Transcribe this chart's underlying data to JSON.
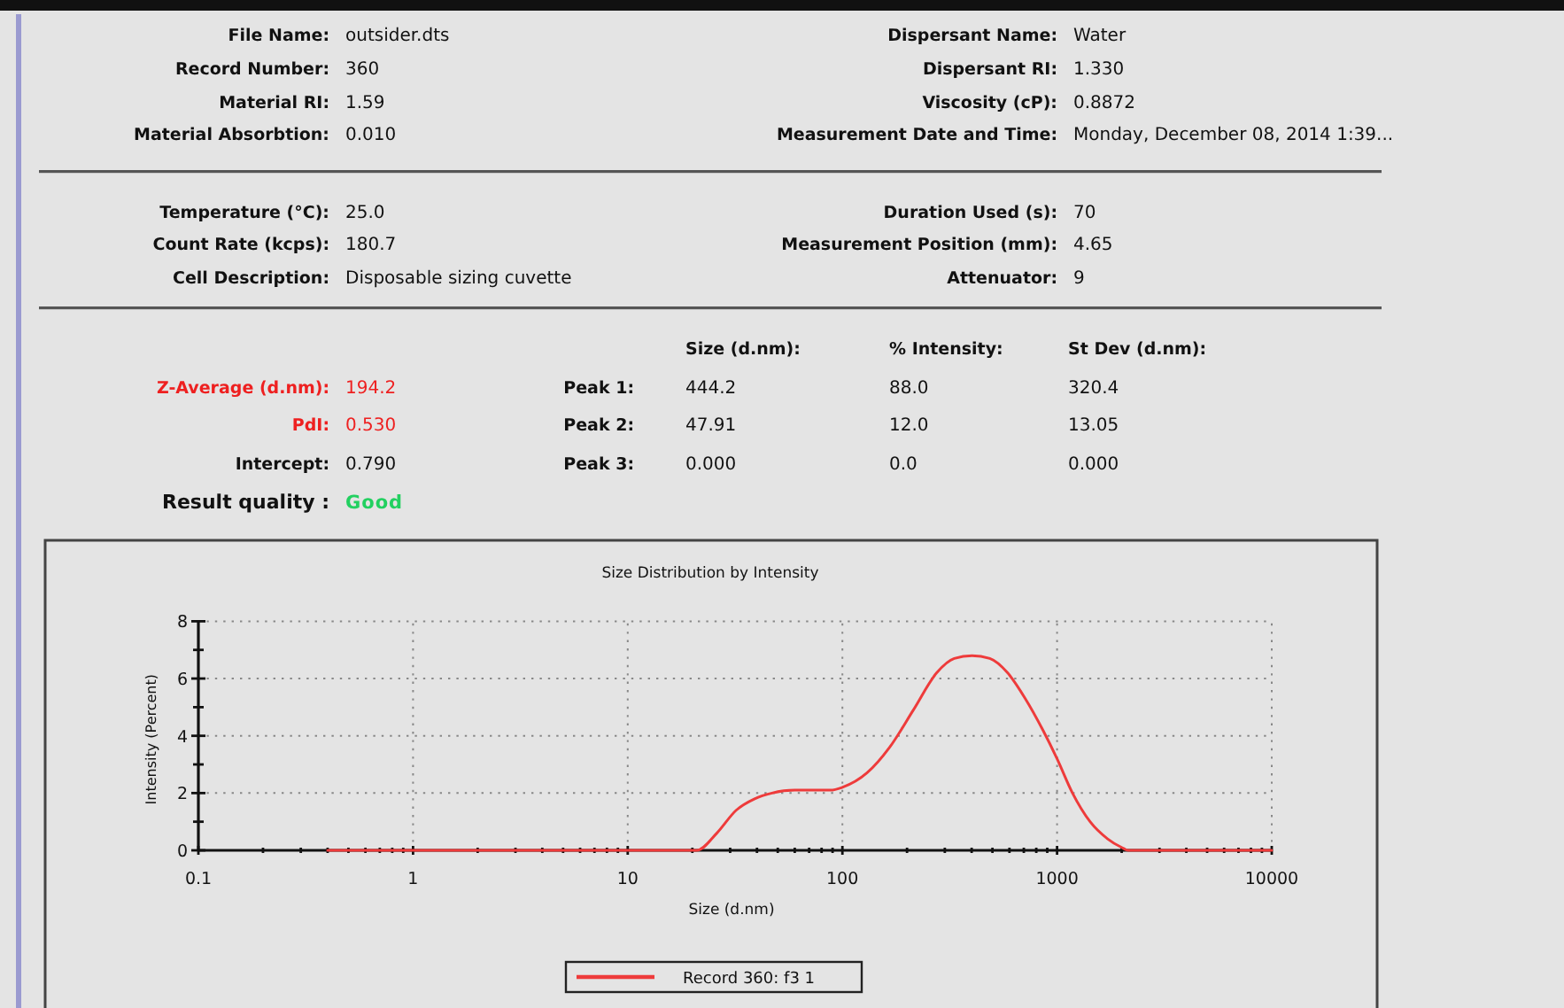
{
  "chart_data": {
    "type": "line",
    "title": "Size Distribution by Intensity",
    "xlabel": "Size (d.nm)",
    "ylabel": "Intensity (Percent)",
    "x": [
      0.4,
      1,
      10,
      21,
      26,
      32,
      39,
      47,
      60,
      88,
      100,
      130,
      166,
      214,
      275,
      332,
      402,
      486,
      588,
      711,
      859,
      1000,
      1180,
      1425,
      1720,
      2000,
      2150,
      10000
    ],
    "series": [
      {
        "name": "Record 360: f3 1",
        "color": "#ee3b3b",
        "values": [
          0,
          0,
          0,
          0,
          0.6,
          1.4,
          1.8,
          2.0,
          2.1,
          2.1,
          2.2,
          2.7,
          3.6,
          4.9,
          6.2,
          6.7,
          6.8,
          6.7,
          6.2,
          5.3,
          4.2,
          3.2,
          2.0,
          1.0,
          0.4,
          0.1,
          0,
          0
        ]
      }
    ],
    "xlim": [
      0.1,
      10000
    ],
    "ylim": [
      0,
      8
    ],
    "xticks": [
      0.1,
      {
        "value": 0.2,
        "label": null
      },
      {
        "value": 0.3,
        "label": null
      },
      {
        "value": 0.4,
        "label": null
      },
      {
        "value": 0.5,
        "label": null
      },
      {
        "value": 0.6,
        "label": null
      },
      {
        "value": 0.7,
        "label": null
      },
      {
        "value": 0.8,
        "label": null
      },
      {
        "value": 0.9,
        "label": null
      },
      1,
      {
        "value": 2,
        "label": null
      },
      {
        "value": 3,
        "label": null
      },
      {
        "value": 4,
        "label": null
      },
      {
        "value": 5,
        "label": null
      },
      {
        "value": 6,
        "label": null
      },
      {
        "value": 7,
        "label": null
      },
      {
        "value": 8,
        "label": null
      },
      {
        "value": 9,
        "label": null
      },
      10,
      {
        "value": 20,
        "label": null
      },
      {
        "value": 30,
        "label": null
      },
      {
        "value": 40,
        "label": null
      },
      {
        "value": 50,
        "label": null
      },
      {
        "value": 60,
        "label": null
      },
      {
        "value": 70,
        "label": null
      },
      {
        "value": 80,
        "label": null
      },
      {
        "value": 90,
        "label": null
      },
      100,
      {
        "value": 200,
        "label": null
      },
      {
        "value": 300,
        "label": null
      },
      {
        "value": 400,
        "label": null
      },
      {
        "value": 500,
        "label": null
      },
      {
        "value": 600,
        "label": null
      },
      {
        "value": 700,
        "label": null
      },
      {
        "value": 800,
        "label": null
      },
      {
        "value": 900,
        "label": null
      },
      1000,
      {
        "value": 2000,
        "label": null
      },
      {
        "value": 3000,
        "label": null
      },
      {
        "value": 4000,
        "label": null
      },
      {
        "value": 5000,
        "label": null
      },
      {
        "value": 6000,
        "label": null
      },
      {
        "value": 7000,
        "label": null
      },
      {
        "value": 8000,
        "label": null
      },
      {
        "value": 9000,
        "label": null
      },
      10000
    ],
    "yticks": [
      0,
      {
        "value": 1,
        "label": null
      },
      2,
      {
        "value": 3,
        "label": null
      },
      4,
      {
        "value": 5,
        "label": null
      },
      6,
      {
        "value": 7,
        "label": null
      },
      8
    ],
    "log": "x",
    "grid": true,
    "legend": "bottom",
    "annotations": [
      "File Name: outsider.dts",
      "Record Number: 360",
      "Material RI: 1.59",
      "Material Absorbtion: 0.010",
      "Dispersant Name: Water",
      "Dispersant RI: 1.330",
      "Viscosity (cP): 0.8872",
      "Measurement Date and Time: Monday, December 08, 2014 1:39...",
      "Temperature (°C): 25.0",
      "Count Rate (kcps): 180.7",
      "Cell Description: Disposable sizing cuvette",
      "Duration Used (s): 70",
      "Measurement Position (mm): 4.65",
      "Attenuator: 9",
      "Z-Average (d.nm): 194.2",
      "PdI: 0.530",
      "Intercept: 0.790",
      "Result quality : Good",
      "Size (d.nm):",
      "% Intensity:",
      "St Dev (d.nm):",
      "Peak 1:",
      "444.2",
      "88.0",
      "320.4",
      "Peak 2:",
      "47.91",
      "12.0",
      "13.05",
      "Peak 3:",
      "0.000",
      "0.0",
      "0.000"
    ]
  }
}
